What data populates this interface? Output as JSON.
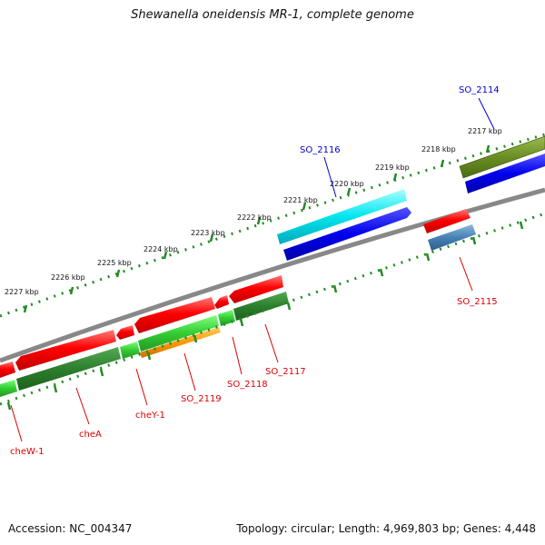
{
  "title": "Shewanella oneidensis MR-1, complete genome",
  "footer": {
    "accession": "Accession: NC_004347",
    "summary": "Topology: circular; Length: 4,969,803 bp; Genes: 4,448"
  },
  "colors": {
    "red": "#ff0000",
    "green": "#33cc33",
    "dark_green": "#338833",
    "olive": "#6b8e23",
    "blue": "#0000ee",
    "cyan": "#00e5ee",
    "orange": "#ff9900",
    "steel": "#4682b4",
    "backbone": "#888888",
    "tick": "#228b22",
    "label_red": "#dd0000",
    "label_blue": "#0000cc"
  },
  "kbp_labels": [
    "2217 kbp",
    "2218 kbp",
    "2219 kbp",
    "2220 kbp",
    "2221 kbp",
    "2222 kbp",
    "2223 kbp",
    "2224 kbp",
    "2225 kbp",
    "2226 kbp",
    "2227 kbp"
  ],
  "gene_labels": [
    "SO_2114",
    "SO_2115",
    "SO_2116",
    "SO_2117",
    "SO_2118",
    "SO_2119",
    "cheY-1",
    "cheA",
    "cheW-1"
  ]
}
